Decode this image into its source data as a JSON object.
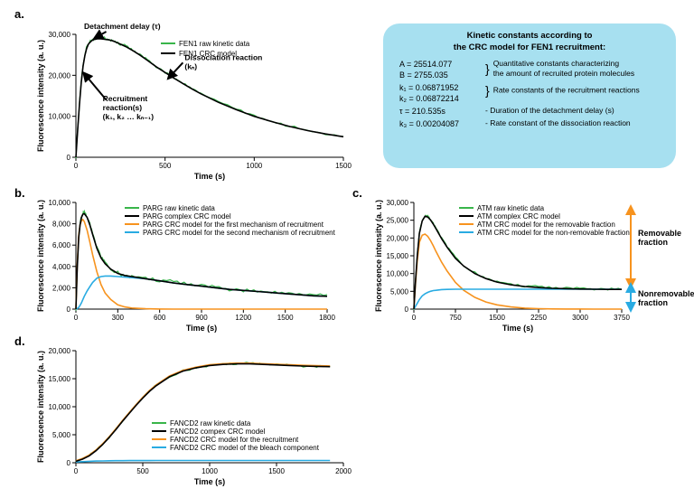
{
  "colors": {
    "raw": "#39b54a",
    "model": "#000000",
    "comp1": "#f7931e",
    "comp2": "#29abe2",
    "info_bg": "#a7e0f0",
    "bg": "#ffffff",
    "axis": "#000000",
    "removable_arrow": "#f7931e",
    "nonremovable_arrow": "#29abe2"
  },
  "panel_labels": {
    "a": "a.",
    "b": "b.",
    "c": "c.",
    "d": "d."
  },
  "axis_titles": {
    "x": "Time (s)",
    "y": "Fluorescence intensity (a. u.)"
  },
  "panelA": {
    "type": "line",
    "xlim": [
      0,
      1500
    ],
    "xtick_step": 500,
    "ylim": [
      0,
      30000
    ],
    "yticks": [
      0,
      10000,
      20000,
      30000
    ],
    "ytick_labels": [
      "0",
      "10,000",
      "20,000",
      "30,000"
    ],
    "raw_x": [
      0,
      10,
      20,
      30,
      40,
      50,
      60,
      70,
      80,
      90,
      100,
      110,
      120,
      140,
      160,
      180,
      200,
      220,
      250,
      280,
      320,
      360,
      400,
      450,
      500,
      550,
      600,
      650,
      700,
      800,
      900,
      1000,
      1100,
      1200,
      1300,
      1400,
      1500
    ],
    "raw_y": [
      0,
      7000,
      13000,
      18500,
      22500,
      25000,
      26800,
      27700,
      28300,
      28600,
      28800,
      29000,
      29000,
      29200,
      29100,
      28800,
      28600,
      28200,
      27600,
      27100,
      26100,
      25000,
      23800,
      22200,
      20800,
      19400,
      18100,
      16800,
      15600,
      13500,
      11700,
      10100,
      8800,
      7600,
      6600,
      5800,
      5100
    ],
    "raw_noise": 350,
    "model_x": [
      0,
      10,
      20,
      30,
      40,
      50,
      60,
      70,
      80,
      90,
      100,
      110,
      120,
      140,
      160,
      180,
      200,
      220,
      250,
      280,
      320,
      360,
      400,
      450,
      500,
      550,
      600,
      650,
      700,
      800,
      900,
      1000,
      1100,
      1200,
      1300,
      1400,
      1500
    ],
    "model_y": [
      0,
      6800,
      12800,
      18200,
      22200,
      24800,
      26500,
      27600,
      28100,
      28500,
      28700,
      28800,
      28900,
      28900,
      28800,
      28700,
      28500,
      28200,
      27600,
      27000,
      26000,
      24900,
      23700,
      22100,
      20700,
      19300,
      18000,
      16700,
      15500,
      13400,
      11600,
      10000,
      8700,
      7500,
      6500,
      5700,
      5000
    ],
    "legend": [
      {
        "color": "raw",
        "label": "FEN1 raw kinetic data"
      },
      {
        "color": "model",
        "label": "FEN1 CRC model"
      }
    ],
    "annot_detach": "Detachment delay (τ)",
    "annot_recruit_l1": "Recruitment",
    "annot_recruit_l2": "reaction(s)",
    "annot_recruit_l3": "(k₁, k₂ … kₙ₋₁)",
    "annot_dissoc_l1": "Dissociation reaction",
    "annot_dissoc_l2": "(kₙ)"
  },
  "infobox": {
    "title_l1": "Kinetic constants according to",
    "title_l2": "the CRC model for FEN1 recruitment:",
    "A": "A = 25514.077",
    "B": "B = 2755.035",
    "AB_desc_l1": "Quantitative constants characterizing",
    "AB_desc_l2": "the amount of recruited protein molecules",
    "k1": "k₁ = 0.06871952",
    "k2": "k₂ = 0.06872214",
    "k_desc": "Rate constants of the recruitment reactions",
    "tau": "τ = 210.535s",
    "tau_desc": "- Duration of the detachment delay (s)",
    "k3": "k₃ = 0.00204087",
    "k3_desc": "- Rate constant of the dissociation reaction"
  },
  "panelB": {
    "type": "line",
    "xlim": [
      0,
      1800
    ],
    "xtick_step": 300,
    "ylim": [
      0,
      10000
    ],
    "yticks": [
      0,
      2000,
      4000,
      6000,
      8000,
      10000
    ],
    "ytick_labels": [
      "0",
      "2,000",
      "4,000",
      "6,000",
      "8,000",
      "10,000"
    ],
    "raw_x": [
      0,
      10,
      20,
      30,
      40,
      50,
      60,
      80,
      100,
      120,
      150,
      180,
      210,
      250,
      300,
      350,
      400,
      500,
      600,
      700,
      800,
      900,
      1000,
      1100,
      1200,
      1300,
      1400,
      1500,
      1600,
      1700,
      1800
    ],
    "raw_y": [
      0,
      4000,
      6800,
      8000,
      8700,
      9000,
      9050,
      8700,
      8000,
      7100,
      5800,
      4900,
      4300,
      3800,
      3400,
      3200,
      3100,
      2900,
      2700,
      2500,
      2350,
      2200,
      2050,
      1900,
      1800,
      1700,
      1600,
      1500,
      1400,
      1300,
      1250
    ],
    "raw_noise": 220,
    "model_y": [
      0,
      3900,
      6700,
      7900,
      8600,
      8900,
      8950,
      8600,
      7900,
      7000,
      5700,
      4800,
      4250,
      3750,
      3350,
      3150,
      3050,
      2850,
      2650,
      2450,
      2300,
      2150,
      2000,
      1850,
      1750,
      1650,
      1550,
      1450,
      1350,
      1250,
      1200
    ],
    "comp1_y": [
      0,
      4200,
      6900,
      7900,
      8300,
      8400,
      8200,
      7400,
      6300,
      5100,
      3500,
      2300,
      1500,
      900,
      400,
      200,
      100,
      30,
      10,
      0,
      0,
      0,
      0,
      0,
      0,
      0,
      0,
      0,
      0,
      0,
      0
    ],
    "comp2_y": [
      0,
      50,
      150,
      350,
      600,
      900,
      1200,
      1700,
      2100,
      2500,
      2900,
      3050,
      3100,
      3100,
      3050,
      3000,
      2950,
      2850,
      2650,
      2450,
      2300,
      2150,
      2000,
      1850,
      1750,
      1650,
      1550,
      1450,
      1350,
      1250,
      1200
    ],
    "legend": [
      {
        "color": "raw",
        "label": "PARG raw kinetic data"
      },
      {
        "color": "model",
        "label": "PARG complex CRC model"
      },
      {
        "color": "comp1",
        "label": "PARG CRC model for the first mechanism of recruitment"
      },
      {
        "color": "comp2",
        "label": "PARG CRC model for the second mechanism of recruitment"
      }
    ]
  },
  "panelC": {
    "type": "line",
    "xlim": [
      0,
      3750
    ],
    "xticks": [
      0,
      750,
      1500,
      2250,
      3000,
      3750
    ],
    "ylim": [
      0,
      30000
    ],
    "yticks": [
      0,
      5000,
      10000,
      15000,
      20000,
      25000,
      30000
    ],
    "ytick_labels": [
      "0",
      "5,000",
      "10,000",
      "15,000",
      "20,000",
      "25,000",
      "30,000"
    ],
    "raw_x": [
      0,
      30,
      60,
      100,
      150,
      200,
      250,
      300,
      350,
      400,
      500,
      600,
      750,
      900,
      1100,
      1300,
      1500,
      1750,
      2000,
      2250,
      2500,
      2750,
      3000,
      3250,
      3500,
      3750
    ],
    "raw_y": [
      0,
      8000,
      15000,
      21500,
      25000,
      26300,
      26100,
      25300,
      24100,
      22800,
      20000,
      17600,
      14500,
      12300,
      10200,
      8800,
      7800,
      7000,
      6500,
      6200,
      6000,
      5900,
      5800,
      5750,
      5700,
      5700
    ],
    "raw_noise": 400,
    "model_y": [
      0,
      7800,
      14800,
      21300,
      24800,
      26100,
      25900,
      25100,
      23900,
      22600,
      19800,
      17400,
      14300,
      12100,
      10000,
      8600,
      7600,
      6850,
      6350,
      6050,
      5850,
      5750,
      5650,
      5600,
      5550,
      5550
    ],
    "comp1_y": [
      0,
      7200,
      13500,
      18800,
      20800,
      21100,
      20500,
      19300,
      17800,
      16200,
      13200,
      10700,
      7500,
      5300,
      3300,
      2000,
      1200,
      600,
      280,
      120,
      60,
      30,
      15,
      8,
      4,
      2
    ],
    "comp2_y": [
      0,
      800,
      1600,
      2700,
      3700,
      4300,
      4700,
      5000,
      5200,
      5300,
      5500,
      5550,
      5600,
      5600,
      5600,
      5600,
      5600,
      5600,
      5600,
      5600,
      5600,
      5600,
      5600,
      5600,
      5600,
      5600
    ],
    "legend": [
      {
        "color": "raw",
        "label": "ATM raw kinetic data"
      },
      {
        "color": "model",
        "label": "ATM complex CRC model"
      },
      {
        "color": "comp1",
        "label": "ATM CRC model for the removable fraction"
      },
      {
        "color": "comp2",
        "label": "ATM CRC model for the non-removable fraction"
      }
    ],
    "side_removable": "Removable\nfraction",
    "side_nonremovable": "Nonremovable\nfraction"
  },
  "panelD": {
    "type": "line",
    "xlim": [
      0,
      2000
    ],
    "xtick_step": 500,
    "ylim": [
      0,
      20000
    ],
    "yticks": [
      0,
      5000,
      10000,
      15000,
      20000
    ],
    "ytick_labels": [
      "0",
      "5,000",
      "10,000",
      "15,000",
      "20,000"
    ],
    "raw_x": [
      0,
      50,
      100,
      150,
      200,
      250,
      300,
      350,
      400,
      450,
      500,
      550,
      600,
      700,
      800,
      900,
      1000,
      1100,
      1200,
      1300,
      1400,
      1500,
      1600,
      1700,
      1800,
      1900
    ],
    "raw_y": [
      300,
      700,
      1300,
      2200,
      3300,
      4600,
      6000,
      7500,
      8900,
      10300,
      11600,
      12800,
      13800,
      15400,
      16400,
      17000,
      17400,
      17600,
      17700,
      17700,
      17600,
      17500,
      17400,
      17300,
      17250,
      17200
    ],
    "raw_noise": 250,
    "model_y": [
      250,
      650,
      1250,
      2150,
      3250,
      4550,
      5950,
      7450,
      8850,
      10250,
      11550,
      12750,
      13750,
      15350,
      16350,
      16950,
      17350,
      17550,
      17650,
      17650,
      17550,
      17450,
      17350,
      17250,
      17200,
      17150
    ],
    "comp1_y": [
      350,
      770,
      1380,
      2280,
      3380,
      4680,
      6080,
      7580,
      8980,
      10380,
      11680,
      12880,
      13880,
      15480,
      16480,
      17080,
      17480,
      17680,
      17780,
      17780,
      17680,
      17580,
      17480,
      17380,
      17330,
      17280
    ],
    "comp2_y": [
      150,
      200,
      260,
      300,
      330,
      350,
      365,
      375,
      382,
      388,
      392,
      395,
      397,
      399,
      400,
      400,
      400,
      400,
      400,
      400,
      400,
      400,
      400,
      400,
      400,
      400
    ],
    "legend": [
      {
        "color": "raw",
        "label": "FANCD2 raw kinetic data"
      },
      {
        "color": "model",
        "label": "FANCD2 compex CRC model"
      },
      {
        "color": "comp1",
        "label": "FANCD2 CRC model for the recruitment"
      },
      {
        "color": "comp2",
        "label": "FANCD2 CRC model of the bleach component"
      }
    ]
  }
}
